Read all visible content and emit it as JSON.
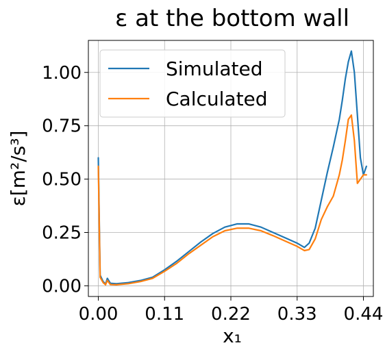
{
  "chart_data": {
    "type": "line",
    "title": "ε at the bottom wall",
    "xlabel": "x₁",
    "ylabel": "ε[m²/s³]",
    "xlim": [
      -0.0165,
      0.4565
    ],
    "ylim": [
      -0.05,
      1.15
    ],
    "xticks": [
      0.0,
      0.11,
      0.22,
      0.33,
      0.44
    ],
    "xtick_labels": [
      "0.00",
      "0.11",
      "0.22",
      "0.33",
      "0.44"
    ],
    "yticks": [
      0.0,
      0.25,
      0.5,
      0.75,
      1.0
    ],
    "ytick_labels": [
      "0.00",
      "0.25",
      "0.50",
      "0.75",
      "1.00"
    ],
    "grid": true,
    "legend_position": "top-left",
    "series": [
      {
        "name": "Simulated",
        "color": "#1f77b4",
        "x": [
          0.0,
          0.003,
          0.008,
          0.012,
          0.015,
          0.02,
          0.03,
          0.05,
          0.07,
          0.09,
          0.11,
          0.13,
          0.15,
          0.17,
          0.19,
          0.21,
          0.23,
          0.25,
          0.27,
          0.29,
          0.31,
          0.33,
          0.342,
          0.35,
          0.36,
          0.37,
          0.38,
          0.39,
          0.4,
          0.405,
          0.41,
          0.415,
          0.42,
          0.425,
          0.43,
          0.435,
          0.44,
          0.445
        ],
        "y": [
          0.6,
          0.05,
          0.02,
          0.008,
          0.035,
          0.012,
          0.01,
          0.015,
          0.025,
          0.04,
          0.075,
          0.115,
          0.16,
          0.205,
          0.245,
          0.275,
          0.29,
          0.29,
          0.275,
          0.25,
          0.225,
          0.2,
          0.18,
          0.2,
          0.27,
          0.4,
          0.53,
          0.65,
          0.78,
          0.87,
          0.97,
          1.05,
          1.1,
          1.0,
          0.8,
          0.6,
          0.52,
          0.56
        ]
      },
      {
        "name": "Calculated",
        "color": "#ff7f0e",
        "x": [
          0.0,
          0.003,
          0.008,
          0.012,
          0.015,
          0.02,
          0.03,
          0.05,
          0.07,
          0.09,
          0.11,
          0.13,
          0.15,
          0.17,
          0.19,
          0.21,
          0.23,
          0.25,
          0.27,
          0.29,
          0.31,
          0.33,
          0.342,
          0.35,
          0.36,
          0.37,
          0.38,
          0.39,
          0.4,
          0.405,
          0.41,
          0.415,
          0.42,
          0.425,
          0.43,
          0.435,
          0.44,
          0.445
        ],
        "y": [
          0.56,
          0.04,
          0.015,
          0.005,
          0.025,
          0.006,
          0.005,
          0.01,
          0.02,
          0.035,
          0.068,
          0.105,
          0.15,
          0.19,
          0.23,
          0.258,
          0.27,
          0.27,
          0.258,
          0.235,
          0.21,
          0.185,
          0.165,
          0.17,
          0.22,
          0.31,
          0.37,
          0.42,
          0.52,
          0.59,
          0.68,
          0.78,
          0.8,
          0.68,
          0.48,
          0.5,
          0.52,
          0.52
        ]
      }
    ]
  }
}
